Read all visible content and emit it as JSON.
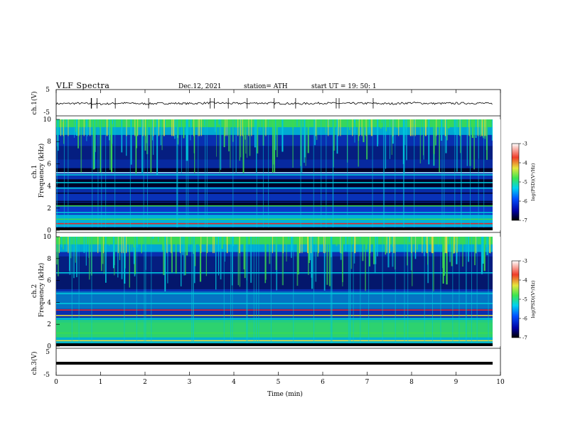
{
  "header": {
    "title": "VLF  Spectra",
    "date": "Dec.12, 2021",
    "station": "station= ATH",
    "start": "start  UT  =    19: 50: 1"
  },
  "chart_data": [
    {
      "type": "line",
      "panel": "ch1-waveform",
      "ylabel": "ch.1(V)",
      "ylim": [
        -5,
        5
      ],
      "yticks": [
        "5",
        "-5"
      ],
      "xlim": [
        0,
        10
      ],
      "x": [
        0,
        0.5,
        1,
        1.5,
        2,
        2.5,
        3,
        3.5,
        4,
        4.5,
        5,
        5.5,
        6,
        6.5,
        7,
        7.5,
        8,
        8.5,
        9,
        9.5,
        9.8
      ],
      "y": [
        -0.3,
        -0.1,
        -0.4,
        0.0,
        -0.3,
        -0.1,
        -0.2,
        0.1,
        -0.2,
        0.0,
        -0.1,
        -0.3,
        0.0,
        -0.2,
        -0.1,
        -0.3,
        0.1,
        -0.2,
        -0.1,
        0.0,
        -0.3
      ],
      "color": "#000000"
    },
    {
      "type": "heatmap",
      "panel": "ch1-spectrogram",
      "ylabel": "ch.1\nFrequency (kHz)",
      "ylim": [
        0,
        10
      ],
      "yticks": [
        "0",
        "2",
        "4",
        "6",
        "8",
        "10"
      ],
      "xlim": [
        0,
        10
      ],
      "colorbar": {
        "label": "log(PSD)(V²/Hz)",
        "range": [
          -7,
          -3
        ],
        "ticks": [
          "-3",
          "-4",
          "-5",
          "-6",
          "-7"
        ]
      }
    },
    {
      "type": "heatmap",
      "panel": "ch2-spectrogram",
      "ylabel": "ch.2\nFrequency (kHz)",
      "ylim": [
        0,
        10
      ],
      "yticks": [
        "0",
        "2",
        "4",
        "6",
        "8",
        "10"
      ],
      "xlim": [
        0,
        10
      ],
      "colorbar": {
        "label": "log(PSD)(V²/Hz)",
        "range": [
          -7,
          -3
        ],
        "ticks": [
          "-3",
          "-4",
          "-5",
          "-6",
          "-7"
        ]
      }
    },
    {
      "type": "line",
      "panel": "ch3-waveform",
      "ylabel": "ch.3(V)",
      "ylim": [
        -5,
        5
      ],
      "yticks": [
        "5",
        "-5"
      ],
      "xlim": [
        0,
        10
      ],
      "x": [
        0,
        9.8
      ],
      "y": [
        0,
        0
      ],
      "color": "#000000"
    }
  ],
  "x_axis": {
    "label": "Time  (min)",
    "ticks": [
      "0",
      "1",
      "2",
      "3",
      "4",
      "5",
      "6",
      "7",
      "8",
      "9",
      "10"
    ]
  },
  "colors": {
    "background": "#ffffff",
    "axes": "#000000",
    "spec_deep": "#000028",
    "spec_blue": "#0a37c8",
    "spec_cyan": "#00c8dc",
    "spec_green": "#3cdc50",
    "spec_yellow": "#e6dc3c",
    "spec_red": "#e62828"
  }
}
